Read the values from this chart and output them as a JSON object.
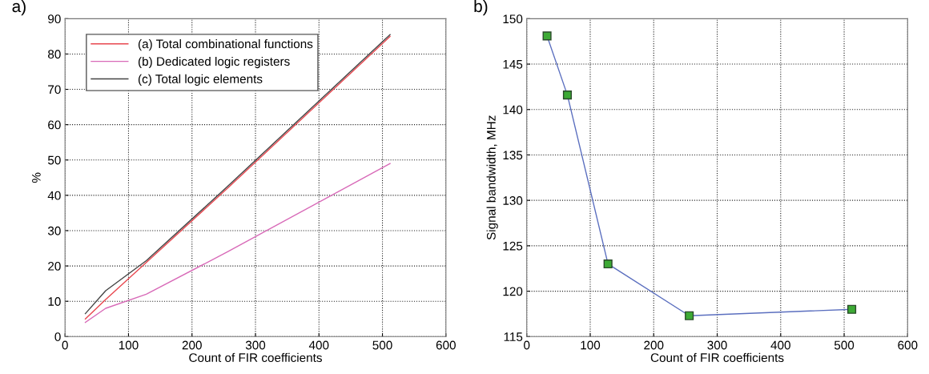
{
  "chart_data": [
    {
      "type": "line",
      "title": "a)",
      "xlabel": "Count of FIR coefficients",
      "ylabel": "%",
      "x": [
        32,
        64,
        128,
        256,
        512
      ],
      "series": [
        {
          "name": "(a) Total combinational functions",
          "color": "#e8474f",
          "values": [
            5,
            10.5,
            21,
            42,
            85
          ]
        },
        {
          "name": "(b) Dedicated logic registers",
          "color": "#d86ab8",
          "values": [
            4,
            8,
            12,
            24,
            49
          ]
        },
        {
          "name": "(c) Total logic elements",
          "color": "#444444",
          "values": [
            6.5,
            13,
            21.5,
            42.5,
            85.5
          ]
        }
      ],
      "xlim": [
        0,
        600
      ],
      "xticks": [
        0,
        100,
        200,
        300,
        400,
        500,
        600
      ],
      "ylim": [
        0,
        90
      ],
      "yticks": [
        0,
        10,
        20,
        30,
        40,
        50,
        60,
        70,
        80,
        90
      ],
      "grid": true,
      "legend": "top left",
      "marker": "none",
      "line_style": "solid"
    },
    {
      "type": "line",
      "title": "b)",
      "xlabel": "Count of FIR coefficients",
      "ylabel": "Signal bandwidth, MHz",
      "x": [
        32,
        64,
        128,
        256,
        512
      ],
      "series": [
        {
          "color": "#5b6fbf",
          "values": [
            148.1,
            141.6,
            123,
            117.3,
            118
          ]
        }
      ],
      "xlim": [
        0,
        600
      ],
      "xticks": [
        0,
        100,
        200,
        300,
        400,
        500,
        600
      ],
      "ylim": [
        115,
        150
      ],
      "yticks": [
        115,
        120,
        125,
        130,
        135,
        140,
        145,
        150
      ],
      "grid": true,
      "marker": "square",
      "line_style": "solid"
    }
  ]
}
